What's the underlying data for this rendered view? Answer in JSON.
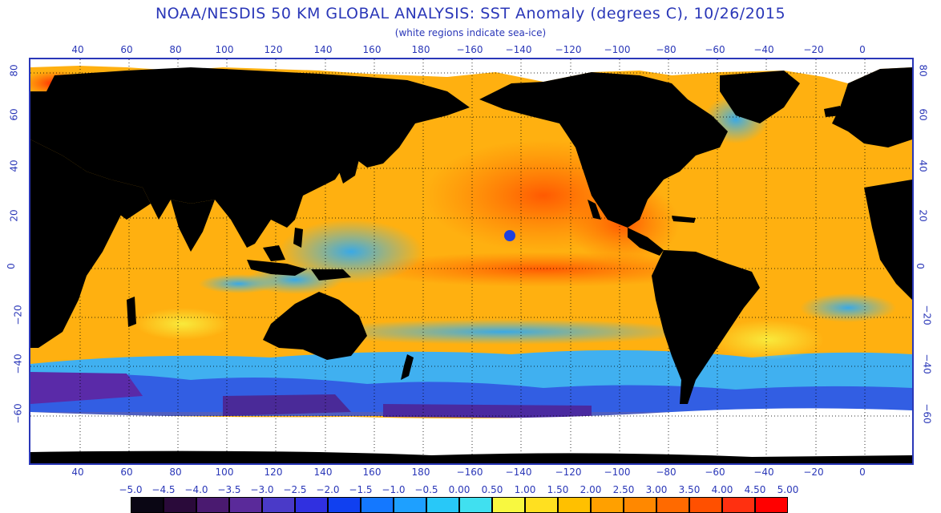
{
  "title": "NOAA/NESDIS 50 KM GLOBAL ANALYSIS: SST Anomaly (degrees C), 10/26/2015",
  "subtitle": "(white regions indicate sea-ice)",
  "lon_labels": [
    "40",
    "60",
    "80",
    "100",
    "120",
    "140",
    "160",
    "180",
    "−160",
    "−140",
    "−120",
    "−100",
    "−80",
    "−60",
    "−40",
    "−20",
    "0"
  ],
  "lat_labels": [
    "80",
    "60",
    "40",
    "20",
    "0",
    "−20",
    "−40",
    "−60"
  ],
  "colorbar": {
    "labels": [
      "−5.0",
      "−4.5",
      "−4.0",
      "−3.5",
      "−3.0",
      "−2.5",
      "−2.0",
      "−1.5",
      "−1.0",
      "−0.5",
      "0.00",
      "0.50",
      "1.00",
      "1.50",
      "2.00",
      "2.50",
      "3.00",
      "3.50",
      "4.00",
      "4.50",
      "5.00"
    ],
    "colors": [
      "#0a0614",
      "#2a0a3a",
      "#4a1a70",
      "#5a2a9a",
      "#4a3ac8",
      "#3030e0",
      "#1040f0",
      "#1478ff",
      "#1ea0ff",
      "#28c8f8",
      "#40e0f0",
      "#f8f840",
      "#ffe020",
      "#ffc000",
      "#ffa000",
      "#ff8800",
      "#ff6a00",
      "#ff5000",
      "#ff3010",
      "#ff0000"
    ]
  },
  "colors": {
    "land": "#000000",
    "ice": "#ffffff",
    "ocean_warm": "#ffb010",
    "ocean_hot": "#ff6000",
    "ocean_cool": "#40b0f0",
    "ocean_cold": "#1e3cdc",
    "ocean_neutral": "#f8e83a",
    "text": "#2a37b8"
  }
}
